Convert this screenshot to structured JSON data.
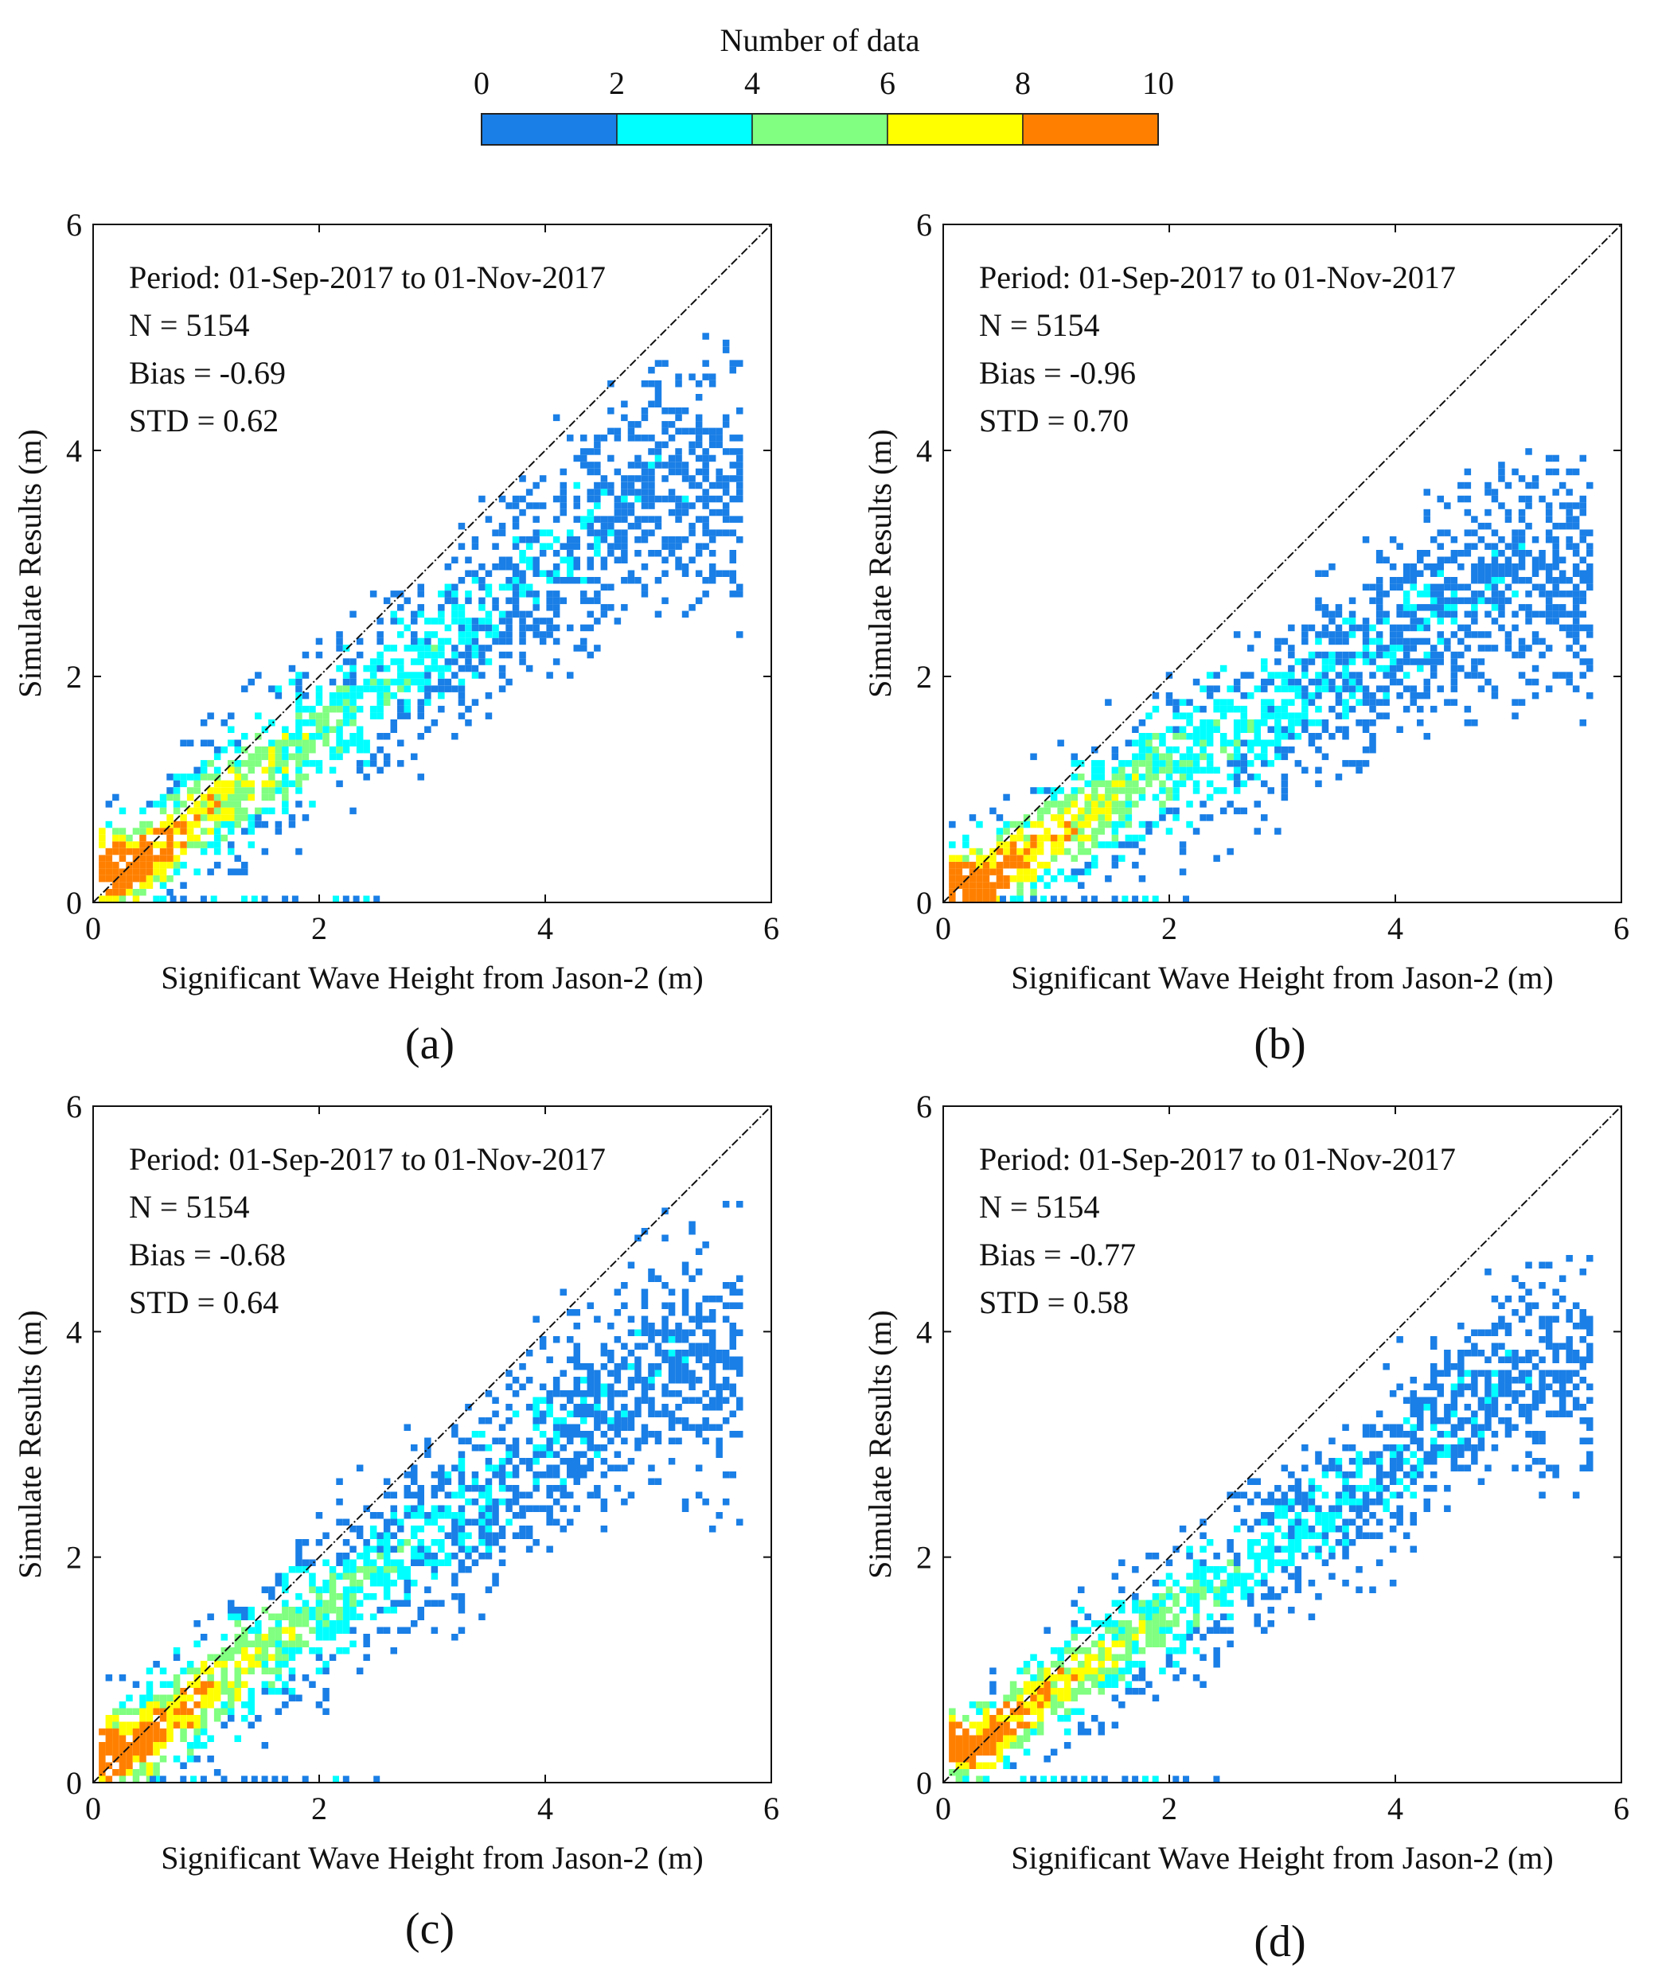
{
  "colorbar": {
    "title": "Number of data",
    "ticks": [
      "0",
      "2",
      "4",
      "6",
      "8",
      "10"
    ],
    "colors": [
      "#1a7fe6",
      "#00ffff",
      "#80ff80",
      "#ffff00",
      "#ff8000"
    ]
  },
  "chart_data": [
    {
      "type": "heatmap",
      "panel_label": "(a)",
      "xlabel": "Significant Wave Height from Jason-2 (m)",
      "ylabel": "Simulate Results (m)",
      "xlim": [
        0,
        6
      ],
      "ylim": [
        0,
        6
      ],
      "xticks": [
        "0",
        "2",
        "4",
        "6"
      ],
      "yticks": [
        "0",
        "2",
        "4",
        "6"
      ],
      "stats": [
        "Period: 01-Sep-2017 to 01-Nov-2017",
        "N = 5154",
        "Bias = -0.69",
        "STD = 0.62"
      ],
      "reference_line": "y = x",
      "density_trend": {
        "x": [
          0.3,
          1.0,
          2.0,
          3.0,
          4.0,
          5.0
        ],
        "y": [
          0.25,
          0.8,
          1.5,
          2.2,
          3.0,
          3.7
        ],
        "spread": 0.35
      }
    },
    {
      "type": "heatmap",
      "panel_label": "(b)",
      "xlabel": "Significant Wave Height from Jason-2 (m)",
      "ylabel": "Simulate Results (m)",
      "xlim": [
        0,
        6
      ],
      "ylim": [
        0,
        6
      ],
      "xticks": [
        "0",
        "2",
        "4",
        "6"
      ],
      "yticks": [
        "0",
        "2",
        "4",
        "6"
      ],
      "stats": [
        "Period: 01-Sep-2017 to 01-Nov-2017",
        "N = 5154",
        "Bias = -0.96",
        "STD = 0.70"
      ],
      "reference_line": "y = x",
      "density_trend": {
        "x": [
          0.3,
          1.0,
          2.0,
          3.0,
          4.0,
          5.0
        ],
        "y": [
          0.1,
          0.6,
          1.2,
          1.7,
          2.3,
          2.9
        ],
        "spread": 0.35
      }
    },
    {
      "type": "heatmap",
      "panel_label": "(c)",
      "xlabel": "Significant Wave Height from Jason-2 (m)",
      "ylabel": "Simulate Results (m)",
      "xlim": [
        0,
        6
      ],
      "ylim": [
        0,
        6
      ],
      "xticks": [
        "0",
        "2",
        "4",
        "6"
      ],
      "yticks": [
        "0",
        "2",
        "4",
        "6"
      ],
      "stats": [
        "Period: 01-Sep-2017 to 01-Nov-2017",
        "N = 5154",
        "Bias = -0.68",
        "STD = 0.64"
      ],
      "reference_line": "y = x",
      "density_trend": {
        "x": [
          0.3,
          1.0,
          2.0,
          3.0,
          4.0,
          5.0
        ],
        "y": [
          0.25,
          0.8,
          1.5,
          2.2,
          3.0,
          3.7
        ],
        "spread": 0.35
      }
    },
    {
      "type": "heatmap",
      "panel_label": "(d)",
      "xlabel": "Significant Wave Height from Jason-2 (m)",
      "ylabel": "Simulate Results (m)",
      "xlim": [
        0,
        6
      ],
      "ylim": [
        0,
        6
      ],
      "xticks": [
        "0",
        "2",
        "4",
        "6"
      ],
      "yticks": [
        "0",
        "2",
        "4",
        "6"
      ],
      "stats": [
        "Period: 01-Sep-2017 to 01-Nov-2017",
        "N = 5154",
        "Bias = -0.77",
        "STD = 0.58"
      ],
      "reference_line": "y = x",
      "density_trend": {
        "x": [
          0.3,
          1.0,
          2.0,
          3.0,
          4.0,
          5.0
        ],
        "y": [
          0.3,
          0.85,
          1.45,
          2.1,
          2.8,
          3.6
        ],
        "spread": 0.3
      }
    }
  ]
}
